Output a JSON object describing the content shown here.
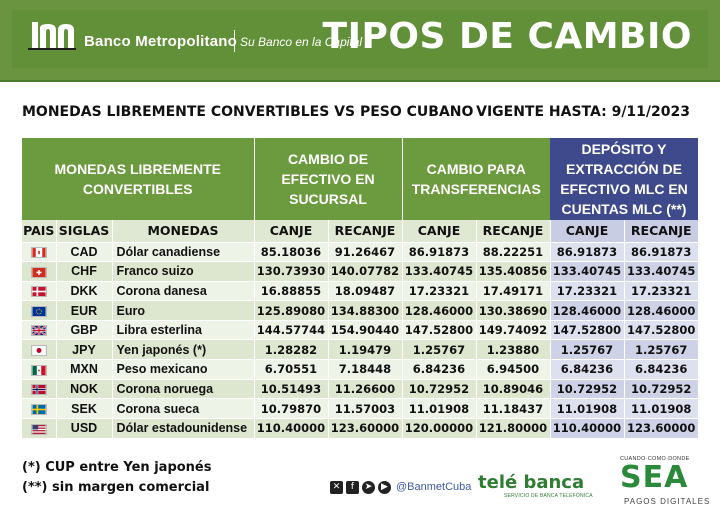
{
  "header": {
    "bank_name": "Banco Metropolitano",
    "slogan": "Su Banco en la Capital",
    "title": "TIPOS DE CAMBIO",
    "colors": {
      "header_bg": "#629039",
      "blue_accent": "#3e4a8c"
    }
  },
  "subtitle": {
    "left": "MONEDAS LIBREMENTE CONVERTIBLES VS PESO CUBANO",
    "right": "VIGENTE HASTA: 9/11/2023"
  },
  "table": {
    "group_headers": {
      "monedas": "MONEDAS LIBREMENTE CONVERTIBLES",
      "efectivo": "CAMBIO DE EFECTIVO EN SUCURSAL",
      "transferencias": "CAMBIO PARA TRANSFERENCIAS",
      "mlc": "DEPÓSITO Y EXTRACCIÓN DE EFECTIVO MLC EN CUENTAS MLC (**)"
    },
    "columns": {
      "pais": "PAIS",
      "siglas": "SIGLAS",
      "monedas": "MONEDAS",
      "canje": "CANJE",
      "recanje": "RECANJE"
    },
    "rows": [
      {
        "flag": "canada-flag-icon",
        "code": "CAD",
        "name": "Dólar canadiense",
        "ef_canje": "85.18036",
        "ef_recanje": "91.26467",
        "tr_canje": "86.91873",
        "tr_recanje": "88.22251",
        "mlc_canje": "86.91873",
        "mlc_recanje": "86.91873"
      },
      {
        "flag": "switzerland-flag-icon",
        "code": "CHF",
        "name": "Franco suizo",
        "ef_canje": "130.73930",
        "ef_recanje": "140.07782",
        "tr_canje": "133.40745",
        "tr_recanje": "135.40856",
        "mlc_canje": "133.40745",
        "mlc_recanje": "133.40745"
      },
      {
        "flag": "denmark-flag-icon",
        "code": "DKK",
        "name": "Corona danesa",
        "ef_canje": "16.88855",
        "ef_recanje": "18.09487",
        "tr_canje": "17.23321",
        "tr_recanje": "17.49171",
        "mlc_canje": "17.23321",
        "mlc_recanje": "17.23321"
      },
      {
        "flag": "eu-flag-icon",
        "code": "EUR",
        "name": "Euro",
        "ef_canje": "125.89080",
        "ef_recanje": "134.88300",
        "tr_canje": "128.46000",
        "tr_recanje": "130.38690",
        "mlc_canje": "128.46000",
        "mlc_recanje": "128.46000"
      },
      {
        "flag": "uk-flag-icon",
        "code": "GBP",
        "name": "Libra esterlina",
        "ef_canje": "144.57744",
        "ef_recanje": "154.90440",
        "tr_canje": "147.52800",
        "tr_recanje": "149.74092",
        "mlc_canje": "147.52800",
        "mlc_recanje": "147.52800"
      },
      {
        "flag": "japan-flag-icon",
        "code": "JPY",
        "name": "Yen japonés (*)",
        "ef_canje": "1.28282",
        "ef_recanje": "1.19479",
        "tr_canje": "1.25767",
        "tr_recanje": "1.23880",
        "mlc_canje": "1.25767",
        "mlc_recanje": "1.25767"
      },
      {
        "flag": "mexico-flag-icon",
        "code": "MXN",
        "name": "Peso mexicano",
        "ef_canje": "6.70551",
        "ef_recanje": "7.18448",
        "tr_canje": "6.84236",
        "tr_recanje": "6.94500",
        "mlc_canje": "6.84236",
        "mlc_recanje": "6.84236"
      },
      {
        "flag": "norway-flag-icon",
        "code": "NOK",
        "name": "Corona noruega",
        "ef_canje": "10.51493",
        "ef_recanje": "11.26600",
        "tr_canje": "10.72952",
        "tr_recanje": "10.89046",
        "mlc_canje": "10.72952",
        "mlc_recanje": "10.72952"
      },
      {
        "flag": "sweden-flag-icon",
        "code": "SEK",
        "name": "Corona sueca",
        "ef_canje": "10.79870",
        "ef_recanje": "11.57003",
        "tr_canje": "11.01908",
        "tr_recanje": "11.18437",
        "mlc_canje": "11.01908",
        "mlc_recanje": "11.01908"
      },
      {
        "flag": "usa-flag-icon",
        "code": "USD",
        "name": "Dólar estadounidense",
        "ef_canje": "110.40000",
        "ef_recanje": "123.60000",
        "tr_canje": "120.00000",
        "tr_recanje": "121.80000",
        "mlc_canje": "110.40000",
        "mlc_recanje": "123.60000"
      }
    ]
  },
  "notes": {
    "note1": "(*) CUP entre Yen japonés",
    "note2": "(**) sin margen comercial"
  },
  "footer": {
    "social_icons": [
      "x-icon",
      "facebook-icon",
      "telegram-icon",
      "youtube-icon"
    ],
    "handle": "@BanmetCuba",
    "telebanca": "telé banca",
    "telebanca_sub": "SERVICIO DE BANCA TELEFÓNICA",
    "sea_top": "CUANDO·COMO·DONDE",
    "sea": "SEA",
    "sea_sub": "PAGOS DIGITALES"
  }
}
